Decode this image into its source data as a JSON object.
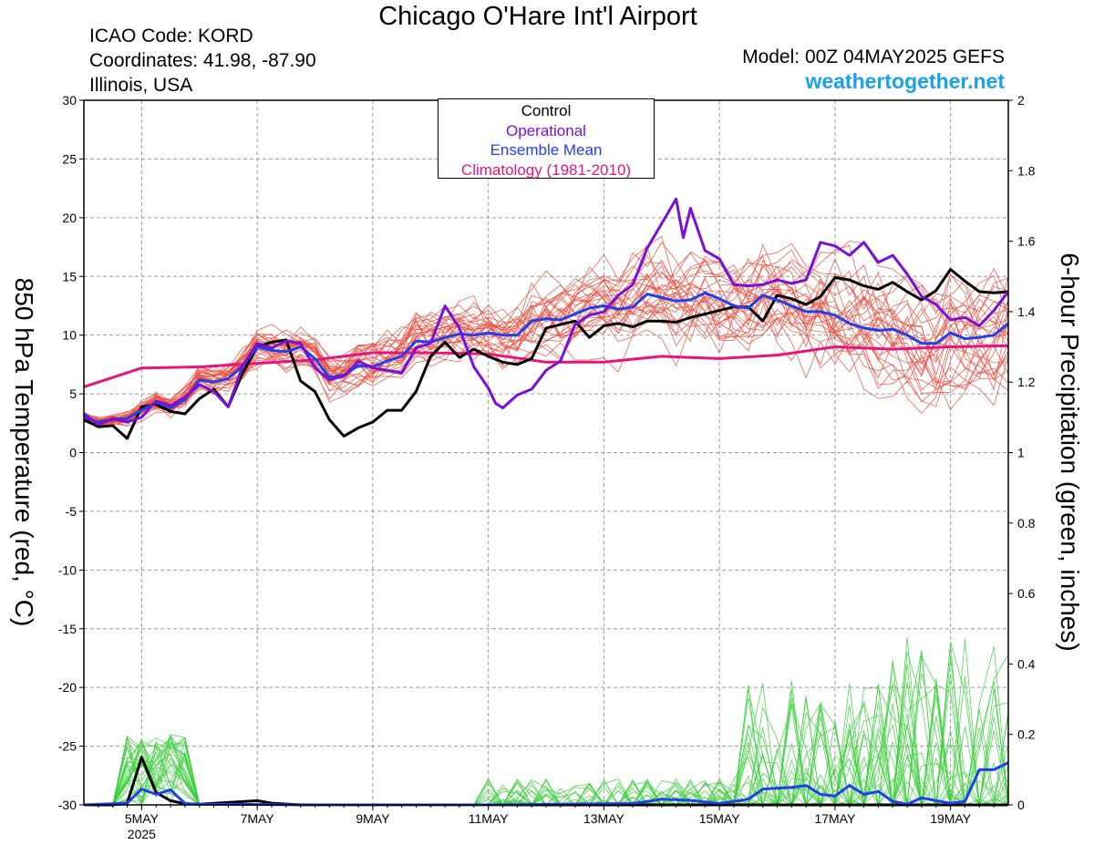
{
  "header": {
    "title": "Chicago O'Hare Int'l Airport",
    "icao": "ICAO Code: KORD",
    "coords": "Coordinates: 41.98, -87.90",
    "region": "Illinois, USA",
    "model": "Model: 00Z 04MAY2025 GEFS",
    "site": "weathertogether.net"
  },
  "legend": {
    "control": "Control",
    "operational": "Operational",
    "mean": "Ensemble Mean",
    "climo": "Climatology (1981-2010)"
  },
  "colors": {
    "control": "#000000",
    "operational": "#7a10d8",
    "mean": "#2040ee",
    "climo": "#e8147c",
    "members_temp": "#f04a3a",
    "members_precip": "#3ad03a",
    "site": "#1aa0f0"
  },
  "chart_data": {
    "type": "line",
    "title": "Chicago O'Hare Int'l Airport",
    "ylabel_left": "850 hPa Temperature (red, °C)",
    "ylabel_right": "6-hour Precipitation (green, inches)",
    "x_unit": "hours since 00Z 04MAY2025",
    "x_range": [
      0,
      384
    ],
    "x_ticks": [
      {
        "h": 24,
        "label": "5MAY",
        "sub": "2025"
      },
      {
        "h": 72,
        "label": "7MAY"
      },
      {
        "h": 120,
        "label": "9MAY"
      },
      {
        "h": 168,
        "label": "11MAY"
      },
      {
        "h": 216,
        "label": "13MAY"
      },
      {
        "h": 264,
        "label": "15MAY"
      },
      {
        "h": 312,
        "label": "17MAY"
      },
      {
        "h": 360,
        "label": "19MAY"
      }
    ],
    "temp_ylim": [
      -30,
      30
    ],
    "temp_ticks": [
      30,
      25,
      20,
      15,
      10,
      5,
      0,
      -5,
      -10,
      -15,
      -20,
      -25,
      -30
    ],
    "precip_ylim": [
      0,
      2
    ],
    "precip_ticks": [
      "2",
      "1.8",
      "1.6",
      "1.4",
      "1.2",
      "1",
      "0.8",
      "0.6",
      "0.4",
      "0.2",
      "0"
    ],
    "grid": true,
    "legend_position": "top-center",
    "series": [
      {
        "name": "Climatology (1981-2010)",
        "kind": "temp",
        "color": "#e8147c",
        "points": [
          [
            0,
            5.6
          ],
          [
            24,
            7.2
          ],
          [
            48,
            7.3
          ],
          [
            72,
            7.6
          ],
          [
            96,
            7.9
          ],
          [
            120,
            8.5
          ],
          [
            144,
            8.5
          ],
          [
            168,
            8.4
          ],
          [
            192,
            7.7
          ],
          [
            216,
            7.7
          ],
          [
            240,
            8.2
          ],
          [
            264,
            8.0
          ],
          [
            288,
            8.3
          ],
          [
            312,
            9.0
          ],
          [
            336,
            8.8
          ],
          [
            360,
            9.0
          ],
          [
            384,
            9.1
          ]
        ]
      },
      {
        "name": "Ensemble Mean",
        "kind": "temp",
        "color": "#2040ee",
        "points": [
          [
            0,
            3.0
          ],
          [
            6,
            2.6
          ],
          [
            12,
            2.8
          ],
          [
            18,
            2.9
          ],
          [
            24,
            3.6
          ],
          [
            30,
            4.3
          ],
          [
            36,
            3.8
          ],
          [
            42,
            4.5
          ],
          [
            48,
            6.2
          ],
          [
            54,
            6.0
          ],
          [
            60,
            6.3
          ],
          [
            66,
            7.4
          ],
          [
            72,
            9.0
          ],
          [
            78,
            8.7
          ],
          [
            84,
            8.6
          ],
          [
            90,
            9.0
          ],
          [
            96,
            8.0
          ],
          [
            102,
            6.4
          ],
          [
            108,
            6.6
          ],
          [
            114,
            7.4
          ],
          [
            120,
            7.3
          ],
          [
            126,
            7.8
          ],
          [
            132,
            8.2
          ],
          [
            138,
            9.5
          ],
          [
            144,
            9.4
          ],
          [
            150,
            9.8
          ],
          [
            156,
            10.1
          ],
          [
            162,
            10.0
          ],
          [
            168,
            10.2
          ],
          [
            174,
            10.0
          ],
          [
            180,
            10.0
          ],
          [
            186,
            11.2
          ],
          [
            192,
            11.4
          ],
          [
            198,
            11.3
          ],
          [
            204,
            11.8
          ],
          [
            210,
            12.3
          ],
          [
            216,
            12.5
          ],
          [
            222,
            12.2
          ],
          [
            228,
            12.4
          ],
          [
            234,
            13.5
          ],
          [
            240,
            13.2
          ],
          [
            246,
            12.9
          ],
          [
            252,
            13.0
          ],
          [
            258,
            13.6
          ],
          [
            264,
            13.1
          ],
          [
            270,
            12.5
          ],
          [
            276,
            12.3
          ],
          [
            282,
            13.4
          ],
          [
            288,
            13.0
          ],
          [
            294,
            12.5
          ],
          [
            300,
            12.0
          ],
          [
            306,
            12.0
          ],
          [
            312,
            11.7
          ],
          [
            318,
            11.0
          ],
          [
            324,
            10.6
          ],
          [
            330,
            10.4
          ],
          [
            336,
            10.5
          ],
          [
            342,
            10.0
          ],
          [
            348,
            9.3
          ],
          [
            354,
            9.3
          ],
          [
            360,
            10.2
          ],
          [
            366,
            9.7
          ],
          [
            372,
            9.8
          ],
          [
            378,
            10.0
          ],
          [
            384,
            11.0
          ]
        ]
      },
      {
        "name": "Control",
        "kind": "temp",
        "color": "#000000",
        "points": [
          [
            0,
            2.8
          ],
          [
            6,
            2.2
          ],
          [
            12,
            2.3
          ],
          [
            18,
            1.2
          ],
          [
            24,
            3.9
          ],
          [
            30,
            4.1
          ],
          [
            36,
            3.5
          ],
          [
            42,
            3.3
          ],
          [
            48,
            4.6
          ],
          [
            54,
            5.4
          ],
          [
            60,
            3.9
          ],
          [
            66,
            6.8
          ],
          [
            72,
            9.0
          ],
          [
            78,
            9.4
          ],
          [
            84,
            9.6
          ],
          [
            90,
            6.1
          ],
          [
            96,
            5.2
          ],
          [
            102,
            2.8
          ],
          [
            108,
            1.4
          ],
          [
            114,
            2.1
          ],
          [
            120,
            2.6
          ],
          [
            126,
            3.6
          ],
          [
            132,
            3.6
          ],
          [
            138,
            5.2
          ],
          [
            144,
            8.2
          ],
          [
            150,
            9.4
          ],
          [
            156,
            8.1
          ],
          [
            162,
            8.8
          ],
          [
            168,
            8.2
          ],
          [
            174,
            7.7
          ],
          [
            180,
            7.5
          ],
          [
            186,
            8.0
          ],
          [
            192,
            10.6
          ],
          [
            198,
            10.9
          ],
          [
            204,
            11.2
          ],
          [
            210,
            9.8
          ],
          [
            216,
            10.8
          ],
          [
            222,
            11.0
          ],
          [
            228,
            10.7
          ],
          [
            234,
            11.2
          ],
          [
            240,
            11.2
          ],
          [
            246,
            11.1
          ],
          [
            252,
            11.5
          ],
          [
            258,
            11.8
          ],
          [
            264,
            12.1
          ],
          [
            270,
            12.4
          ],
          [
            276,
            12.4
          ],
          [
            282,
            11.2
          ],
          [
            288,
            13.4
          ],
          [
            294,
            13.1
          ],
          [
            300,
            12.6
          ],
          [
            306,
            13.3
          ],
          [
            312,
            14.9
          ],
          [
            318,
            14.7
          ],
          [
            324,
            14.2
          ],
          [
            330,
            13.9
          ],
          [
            336,
            14.5
          ],
          [
            342,
            13.7
          ],
          [
            348,
            13.0
          ],
          [
            354,
            13.8
          ],
          [
            360,
            15.6
          ],
          [
            366,
            14.6
          ],
          [
            372,
            13.7
          ],
          [
            378,
            13.6
          ],
          [
            384,
            13.7
          ]
        ]
      },
      {
        "name": "Operational",
        "kind": "temp",
        "color": "#7a10d8",
        "points": [
          [
            0,
            3.3
          ],
          [
            6,
            2.4
          ],
          [
            12,
            2.9
          ],
          [
            18,
            2.6
          ],
          [
            24,
            3.0
          ],
          [
            30,
            4.4
          ],
          [
            36,
            4.0
          ],
          [
            42,
            4.7
          ],
          [
            48,
            5.8
          ],
          [
            54,
            5.2
          ],
          [
            60,
            3.9
          ],
          [
            66,
            7.4
          ],
          [
            72,
            9.3
          ],
          [
            78,
            8.9
          ],
          [
            84,
            9.5
          ],
          [
            90,
            9.3
          ],
          [
            96,
            7.2
          ],
          [
            102,
            6.2
          ],
          [
            108,
            6.5
          ],
          [
            114,
            7.8
          ],
          [
            120,
            7.2
          ],
          [
            126,
            7.0
          ],
          [
            132,
            6.8
          ],
          [
            138,
            8.9
          ],
          [
            144,
            9.3
          ],
          [
            150,
            12.5
          ],
          [
            156,
            10.6
          ],
          [
            162,
            7.3
          ],
          [
            168,
            5.5
          ],
          [
            171,
            4.2
          ],
          [
            174,
            3.8
          ],
          [
            180,
            4.9
          ],
          [
            186,
            5.4
          ],
          [
            192,
            7.0
          ],
          [
            198,
            7.8
          ],
          [
            204,
            10.9
          ],
          [
            210,
            11.7
          ],
          [
            216,
            12.0
          ],
          [
            222,
            13.4
          ],
          [
            228,
            14.3
          ],
          [
            234,
            17.4
          ],
          [
            240,
            19.5
          ],
          [
            246,
            21.6
          ],
          [
            249,
            18.3
          ],
          [
            252,
            20.8
          ],
          [
            258,
            17.2
          ],
          [
            264,
            16.5
          ],
          [
            270,
            14.3
          ],
          [
            276,
            14.2
          ],
          [
            282,
            14.3
          ],
          [
            288,
            14.7
          ],
          [
            294,
            14.4
          ],
          [
            300,
            14.7
          ],
          [
            306,
            17.9
          ],
          [
            312,
            17.6
          ],
          [
            318,
            16.8
          ],
          [
            324,
            17.9
          ],
          [
            330,
            16.2
          ],
          [
            336,
            16.8
          ],
          [
            342,
            15.2
          ],
          [
            348,
            13.3
          ],
          [
            354,
            12.6
          ],
          [
            360,
            11.3
          ],
          [
            366,
            11.5
          ],
          [
            372,
            10.8
          ],
          [
            378,
            12.1
          ],
          [
            384,
            13.7
          ]
        ]
      },
      {
        "name": "Control",
        "kind": "precip",
        "color": "#000000",
        "points": [
          [
            0,
            0
          ],
          [
            12,
            0
          ],
          [
            18,
            0.005
          ],
          [
            24,
            0.135
          ],
          [
            30,
            0.035
          ],
          [
            36,
            0.012
          ],
          [
            42,
            0.003
          ],
          [
            48,
            0.002
          ],
          [
            72,
            0.012
          ],
          [
            78,
            0.005
          ],
          [
            90,
            0
          ],
          [
            384,
            0
          ]
        ]
      },
      {
        "name": "Ensemble Mean",
        "kind": "precip",
        "color": "#2040ee",
        "points": [
          [
            0,
            0
          ],
          [
            18,
            0.005
          ],
          [
            24,
            0.045
          ],
          [
            30,
            0.03
          ],
          [
            36,
            0.043
          ],
          [
            42,
            0.004
          ],
          [
            48,
            0.002
          ],
          [
            96,
            0
          ],
          [
            168,
            0
          ],
          [
            216,
            0.003
          ],
          [
            228,
            0.004
          ],
          [
            240,
            0.016
          ],
          [
            252,
            0.013
          ],
          [
            264,
            0.004
          ],
          [
            276,
            0.016
          ],
          [
            282,
            0.045
          ],
          [
            294,
            0.05
          ],
          [
            300,
            0.055
          ],
          [
            306,
            0.03
          ],
          [
            312,
            0.025
          ],
          [
            318,
            0.055
          ],
          [
            324,
            0.03
          ],
          [
            330,
            0.038
          ],
          [
            336,
            0.01
          ],
          [
            342,
            0.002
          ],
          [
            348,
            0.02
          ],
          [
            354,
            0.012
          ],
          [
            360,
            0.005
          ],
          [
            366,
            0.01
          ],
          [
            372,
            0.1
          ],
          [
            378,
            0.1
          ],
          [
            384,
            0.12
          ]
        ]
      }
    ]
  }
}
